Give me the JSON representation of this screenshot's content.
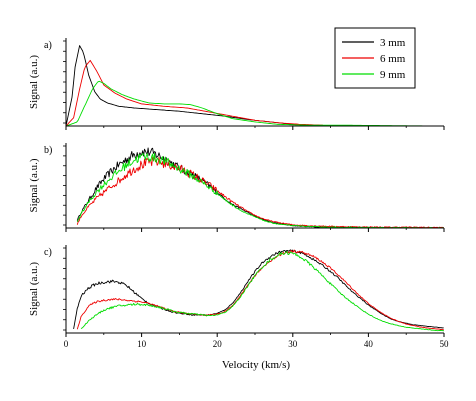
{
  "figure": {
    "xlabel": "Velocity (km/s)",
    "ylabel": "Signal (a.u.)",
    "legend": [
      {
        "label": "3 mm",
        "color": "#000000"
      },
      {
        "label": "6 mm",
        "color": "#ee0000"
      },
      {
        "label": "9 mm",
        "color": "#00dd00"
      }
    ]
  },
  "chart_data": [
    {
      "type": "line",
      "panel_label": "a)",
      "xlim": [
        0,
        50
      ],
      "ylim": [
        0,
        1
      ],
      "xticks": [
        0,
        10,
        20,
        30,
        40,
        50
      ],
      "show_xtick_labels": false,
      "legend_placement": "top-right",
      "grid": false,
      "series": [
        {
          "name": "3 mm",
          "color": "#000000",
          "noise": 0,
          "x": [
            0,
            0.8,
            1.2,
            1.8,
            2.3,
            3.0,
            3.8,
            4.5,
            5.5,
            7,
            9,
            12,
            15,
            18,
            21,
            24,
            27,
            30,
            33
          ],
          "y": [
            0,
            0.35,
            0.72,
            0.98,
            0.9,
            0.62,
            0.42,
            0.33,
            0.28,
            0.24,
            0.22,
            0.2,
            0.18,
            0.15,
            0.12,
            0.08,
            0.05,
            0.02,
            0.01
          ]
        },
        {
          "name": "6 mm",
          "color": "#ee0000",
          "noise": 0,
          "x": [
            0,
            1,
            1.8,
            2.5,
            3.2,
            4.0,
            5.0,
            6.5,
            8,
            10,
            13,
            16,
            19,
            22,
            25,
            28,
            31,
            34
          ],
          "y": [
            0,
            0.1,
            0.45,
            0.72,
            0.8,
            0.68,
            0.5,
            0.4,
            0.33,
            0.27,
            0.24,
            0.22,
            0.17,
            0.12,
            0.07,
            0.04,
            0.02,
            0.01
          ]
        },
        {
          "name": "9 mm",
          "color": "#00dd00",
          "noise": 0,
          "x": [
            0,
            1.5,
            2.5,
            3.5,
            4.3,
            5.0,
            6.0,
            7.5,
            9,
            11,
            13,
            15,
            16.5,
            18,
            20,
            22,
            25,
            28,
            32,
            37,
            42,
            50
          ],
          "y": [
            0,
            0.05,
            0.25,
            0.45,
            0.55,
            0.52,
            0.45,
            0.38,
            0.33,
            0.28,
            0.27,
            0.27,
            0.26,
            0.22,
            0.15,
            0.09,
            0.05,
            0.02,
            0.01,
            0.01,
            0.005,
            0
          ]
        }
      ]
    },
    {
      "type": "line",
      "panel_label": "b)",
      "xlim": [
        0,
        50
      ],
      "ylim": [
        0,
        1
      ],
      "xticks": [
        0,
        10,
        20,
        30,
        40,
        50
      ],
      "show_xtick_labels": false,
      "grid": false,
      "series": [
        {
          "name": "3 mm",
          "color": "#000000",
          "noise": 0.07,
          "x": [
            1.5,
            2,
            3,
            4,
            5,
            6,
            7,
            8,
            9,
            10,
            11,
            12,
            13,
            14,
            15,
            16,
            17,
            18,
            19,
            20,
            21,
            22,
            23,
            24,
            25,
            26,
            27,
            28,
            30,
            32,
            34,
            36,
            40,
            50
          ],
          "y": [
            0.1,
            0.2,
            0.35,
            0.5,
            0.62,
            0.72,
            0.8,
            0.87,
            0.93,
            0.97,
            0.96,
            0.93,
            0.88,
            0.82,
            0.76,
            0.71,
            0.66,
            0.6,
            0.53,
            0.45,
            0.37,
            0.3,
            0.25,
            0.2,
            0.15,
            0.11,
            0.08,
            0.06,
            0.03,
            0.02,
            0.01,
            0.01,
            0.005,
            0
          ]
        },
        {
          "name": "6 mm",
          "color": "#ee0000",
          "noise": 0.08,
          "x": [
            1.5,
            2,
            3,
            4,
            5,
            6,
            7,
            8,
            9,
            10,
            11,
            12,
            13,
            14,
            15,
            16,
            17,
            18,
            19,
            20,
            21,
            22,
            23,
            24,
            25,
            26,
            27,
            28,
            30,
            32,
            35,
            38,
            42,
            46,
            50
          ],
          "y": [
            0.05,
            0.15,
            0.27,
            0.37,
            0.45,
            0.53,
            0.6,
            0.68,
            0.75,
            0.8,
            0.83,
            0.84,
            0.82,
            0.79,
            0.75,
            0.71,
            0.66,
            0.6,
            0.54,
            0.47,
            0.4,
            0.33,
            0.27,
            0.21,
            0.16,
            0.12,
            0.09,
            0.07,
            0.04,
            0.03,
            0.02,
            0.015,
            0.01,
            0.01,
            0.005
          ]
        },
        {
          "name": "9 mm",
          "color": "#00dd00",
          "noise": 0.07,
          "x": [
            1.5,
            2,
            3,
            4,
            5,
            6,
            7,
            8,
            9,
            10,
            11,
            12,
            13,
            14,
            15,
            16,
            17,
            18,
            19,
            20,
            21,
            22,
            23,
            24,
            25,
            26,
            27,
            28,
            30,
            32,
            35,
            40,
            50
          ],
          "y": [
            0.08,
            0.18,
            0.33,
            0.45,
            0.55,
            0.64,
            0.72,
            0.8,
            0.86,
            0.9,
            0.9,
            0.88,
            0.85,
            0.8,
            0.75,
            0.7,
            0.64,
            0.58,
            0.51,
            0.44,
            0.36,
            0.29,
            0.23,
            0.18,
            0.14,
            0.1,
            0.07,
            0.05,
            0.03,
            0.02,
            0.01,
            0.005,
            0
          ]
        }
      ]
    },
    {
      "type": "line",
      "panel_label": "c)",
      "xlim": [
        0,
        50
      ],
      "ylim": [
        0,
        1
      ],
      "xticks": [
        0,
        10,
        20,
        30,
        40,
        50
      ],
      "xtick_labels": [
        "0",
        "10",
        "20",
        "30",
        "40",
        "50"
      ],
      "show_xtick_labels": true,
      "grid": false,
      "series": [
        {
          "name": "3 mm",
          "color": "#000000",
          "noise": 0.03,
          "x": [
            1,
            1.5,
            2,
            3,
            4,
            5,
            6,
            7,
            8,
            9,
            10,
            11,
            12,
            13,
            14,
            15,
            16,
            17,
            18,
            19,
            20,
            21,
            22,
            23,
            24,
            25,
            26,
            27,
            28,
            29,
            30,
            31,
            32,
            33,
            34,
            35,
            36,
            37,
            38,
            39,
            40,
            41,
            42,
            43,
            44,
            45,
            46,
            47,
            48,
            49,
            50
          ],
          "y": [
            0.05,
            0.3,
            0.45,
            0.55,
            0.6,
            0.62,
            0.63,
            0.62,
            0.58,
            0.5,
            0.42,
            0.36,
            0.32,
            0.29,
            0.26,
            0.24,
            0.23,
            0.22,
            0.22,
            0.22,
            0.24,
            0.28,
            0.36,
            0.48,
            0.62,
            0.75,
            0.86,
            0.93,
            0.98,
            1.0,
            1.0,
            0.98,
            0.94,
            0.88,
            0.82,
            0.75,
            0.67,
            0.58,
            0.49,
            0.42,
            0.34,
            0.28,
            0.22,
            0.17,
            0.14,
            0.12,
            0.1,
            0.09,
            0.08,
            0.07,
            0.06
          ]
        },
        {
          "name": "6 mm",
          "color": "#ee0000",
          "noise": 0.03,
          "x": [
            1.5,
            2,
            3,
            4,
            5,
            6,
            7,
            8,
            9,
            10,
            11,
            12,
            13,
            14,
            15,
            16,
            17,
            18,
            19,
            20,
            21,
            22,
            23,
            24,
            25,
            26,
            27,
            28,
            29,
            30,
            31,
            32,
            33,
            34,
            35,
            36,
            37,
            38,
            39,
            40,
            41,
            42,
            43,
            44,
            45,
            46,
            47,
            48,
            49,
            50
          ],
          "y": [
            0.05,
            0.2,
            0.33,
            0.38,
            0.4,
            0.41,
            0.41,
            0.4,
            0.39,
            0.38,
            0.36,
            0.33,
            0.3,
            0.27,
            0.25,
            0.24,
            0.23,
            0.22,
            0.22,
            0.23,
            0.26,
            0.33,
            0.44,
            0.58,
            0.7,
            0.8,
            0.88,
            0.94,
            0.98,
            1.0,
            0.99,
            0.96,
            0.92,
            0.86,
            0.79,
            0.71,
            0.62,
            0.53,
            0.44,
            0.36,
            0.29,
            0.23,
            0.18,
            0.14,
            0.11,
            0.09,
            0.07,
            0.06,
            0.05,
            0.04
          ]
        },
        {
          "name": "9 mm",
          "color": "#00dd00",
          "noise": 0.04,
          "x": [
            2,
            3,
            4,
            5,
            6,
            7,
            8,
            9,
            10,
            11,
            12,
            13,
            14,
            15,
            16,
            17,
            18,
            19,
            20,
            21,
            22,
            23,
            24,
            25,
            26,
            27,
            28,
            29,
            30,
            31,
            32,
            33,
            34,
            35,
            36,
            37,
            38,
            39,
            40,
            41,
            42,
            43,
            44,
            45,
            46,
            47,
            48,
            49,
            50
          ],
          "y": [
            0.05,
            0.15,
            0.22,
            0.28,
            0.31,
            0.33,
            0.34,
            0.35,
            0.35,
            0.34,
            0.32,
            0.3,
            0.27,
            0.25,
            0.24,
            0.23,
            0.22,
            0.21,
            0.22,
            0.25,
            0.32,
            0.43,
            0.57,
            0.7,
            0.81,
            0.89,
            0.95,
            0.98,
            0.97,
            0.93,
            0.86,
            0.78,
            0.69,
            0.6,
            0.51,
            0.43,
            0.36,
            0.29,
            0.23,
            0.18,
            0.14,
            0.11,
            0.09,
            0.07,
            0.06,
            0.05,
            0.04,
            0.03,
            0.03
          ]
        }
      ]
    }
  ]
}
